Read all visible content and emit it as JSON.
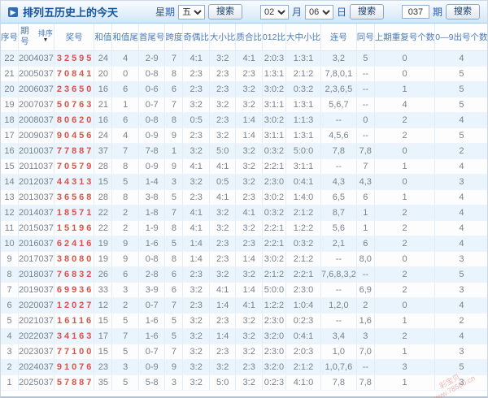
{
  "title": "排列五历史上的今天",
  "title_icon": "▶",
  "toolbar": {
    "week_label": "星期",
    "week_value": "五",
    "month_value": "02",
    "month_label": "月",
    "day_value": "06",
    "day_label": "日",
    "issue_value": "037",
    "issue_label": "期",
    "search_label": "搜索"
  },
  "table": {
    "headers": [
      "序号",
      "期号",
      "奖号",
      "和值",
      "和值尾",
      "首尾号",
      "跨度",
      "奇偶比",
      "大小比",
      "质合比",
      "012比",
      "大中小比",
      "连号",
      "同号",
      "上期重复号个数",
      "0—9出号个数"
    ],
    "sort_label": "排序",
    "sort_arrow": "▼",
    "rows": [
      [
        "22",
        "2004037",
        "32595",
        "24",
        "4",
        "2-9",
        "7",
        "4:1",
        "3:2",
        "4:1",
        "2:0:3",
        "1:3:1",
        "3,2",
        "5",
        "0",
        "4"
      ],
      [
        "21",
        "2005037",
        "70841",
        "20",
        "0",
        "0-8",
        "8",
        "2:3",
        "2:3",
        "2:3",
        "1:3:1",
        "2:1:2",
        "7,8,0,1",
        "--",
        "0",
        "5"
      ],
      [
        "20",
        "2006037",
        "23650",
        "16",
        "6",
        "0-6",
        "6",
        "2:3",
        "2:3",
        "3:2",
        "3:0:2",
        "0:3:2",
        "2,3,6,5",
        "--",
        "1",
        "5"
      ],
      [
        "19",
        "2007037",
        "50763",
        "21",
        "1",
        "0-7",
        "7",
        "3:2",
        "3:2",
        "3:2",
        "3:1:1",
        "1:3:1",
        "5,6,7",
        "--",
        "4",
        "5"
      ],
      [
        "18",
        "2008037",
        "80620",
        "16",
        "6",
        "0-8",
        "8",
        "0:5",
        "2:3",
        "1:4",
        "3:0:2",
        "1:1:3",
        "--",
        "0",
        "2",
        "4"
      ],
      [
        "17",
        "2009037",
        "90456",
        "24",
        "4",
        "0-9",
        "9",
        "2:3",
        "3:2",
        "1:4",
        "3:1:1",
        "1:3:1",
        "4,5,6",
        "--",
        "2",
        "5"
      ],
      [
        "16",
        "2010037",
        "77887",
        "37",
        "7",
        "7-8",
        "1",
        "3:2",
        "5:0",
        "3:2",
        "0:3:2",
        "5:0:0",
        "7,8",
        "7,8",
        "0",
        "2"
      ],
      [
        "15",
        "2011037",
        "70579",
        "28",
        "8",
        "0-9",
        "9",
        "4:1",
        "4:1",
        "3:2",
        "2:2:1",
        "3:1:1",
        "--",
        "7",
        "1",
        "4"
      ],
      [
        "14",
        "2012037",
        "44313",
        "15",
        "5",
        "1-4",
        "3",
        "3:2",
        "0:5",
        "3:2",
        "2:3:0",
        "0:4:1",
        "4,3",
        "4,3",
        "0",
        "3"
      ],
      [
        "13",
        "2013037",
        "36568",
        "28",
        "8",
        "3-8",
        "5",
        "2:3",
        "4:1",
        "2:3",
        "3:0:2",
        "1:4:0",
        "6,5",
        "6",
        "1",
        "4"
      ],
      [
        "12",
        "2014037",
        "18571",
        "22",
        "2",
        "1-8",
        "7",
        "4:1",
        "3:2",
        "4:1",
        "0:3:2",
        "2:1:2",
        "8,7",
        "1",
        "2",
        "4"
      ],
      [
        "11",
        "2015037",
        "15196",
        "22",
        "2",
        "1-9",
        "8",
        "4:1",
        "3:2",
        "3:2",
        "2:2:1",
        "1:2:2",
        "5,6",
        "1",
        "2",
        "4"
      ],
      [
        "10",
        "2016037",
        "62416",
        "19",
        "9",
        "1-6",
        "5",
        "1:4",
        "2:3",
        "2:3",
        "2:2:1",
        "0:3:2",
        "2,1",
        "6",
        "2",
        "4"
      ],
      [
        "9",
        "2017037",
        "38080",
        "19",
        "9",
        "0-8",
        "8",
        "1:4",
        "2:3",
        "1:4",
        "3:0:2",
        "2:1:2",
        "--",
        "8,0",
        "0",
        "3"
      ],
      [
        "8",
        "2018037",
        "76832",
        "26",
        "6",
        "2-8",
        "6",
        "2:3",
        "3:2",
        "3:2",
        "2:1:2",
        "2:2:1",
        "7,6,8,3,2",
        "--",
        "2",
        "5"
      ],
      [
        "7",
        "2019037",
        "69936",
        "33",
        "3",
        "3-9",
        "6",
        "3:2",
        "4:1",
        "1:4",
        "5:0:0",
        "2:3:0",
        "--",
        "6,9",
        "2",
        "3"
      ],
      [
        "6",
        "2020037",
        "12027",
        "12",
        "2",
        "0-7",
        "7",
        "2:3",
        "1:4",
        "4:1",
        "1:2:2",
        "1:0:4",
        "1,2,0",
        "2",
        "0",
        "4"
      ],
      [
        "5",
        "2021037",
        "16116",
        "15",
        "5",
        "1-6",
        "5",
        "3:2",
        "2:3",
        "3:2",
        "2:3:0",
        "0:2:3",
        "--",
        "1,6",
        "1",
        "2"
      ],
      [
        "4",
        "2022037",
        "34163",
        "17",
        "7",
        "1-6",
        "5",
        "3:2",
        "1:4",
        "3:2",
        "3:2:0",
        "0:4:1",
        "3,4",
        "3",
        "2",
        "4"
      ],
      [
        "3",
        "2023037",
        "77100",
        "15",
        "5",
        "0-7",
        "7",
        "3:2",
        "2:3",
        "3:2",
        "2:3:0",
        "2:0:3",
        "1,0",
        "7,0",
        "1",
        "3"
      ],
      [
        "2",
        "2024037",
        "91076",
        "23",
        "3",
        "0-9",
        "9",
        "3:2",
        "3:2",
        "2:3",
        "3:2:0",
        "2:1:2",
        "1,0,7,6",
        "--",
        "3",
        "5"
      ],
      [
        "1",
        "2025037",
        "57887",
        "35",
        "5",
        "5-8",
        "3",
        "3:2",
        "5:0",
        "3:2",
        "0:2:3",
        "4:1:0",
        "7,8",
        "7,8",
        "1",
        "3"
      ]
    ]
  },
  "watermark": {
    "brand": "彩宝贝",
    "url": "www.78500.cn"
  },
  "colors": {
    "accent_blue": "#17549e",
    "header_blue": "#4a7ab8",
    "prize_red": "#d9534a",
    "row_alt": "#e9f4fc"
  }
}
